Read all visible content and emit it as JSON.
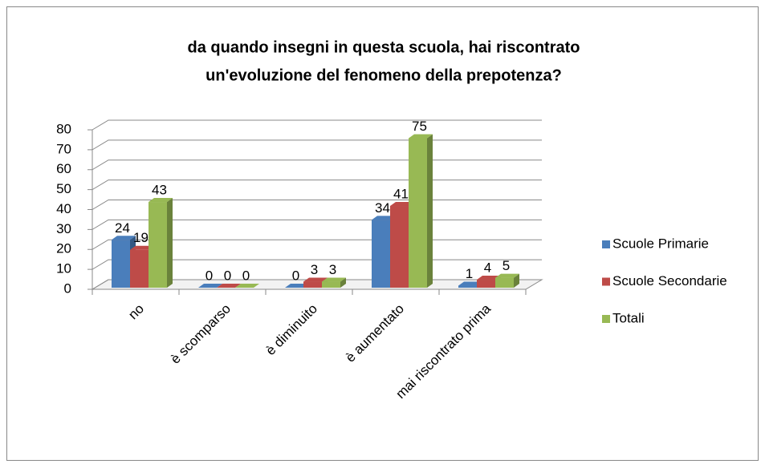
{
  "chart_data": {
    "type": "bar3d",
    "title": [
      "da quando insegni in questa scuola, hai riscontrato",
      "un'evoluzione del fenomeno della prepotenza?"
    ],
    "categories": [
      "no",
      "è scomparso",
      "è diminuito",
      "è aumentato",
      "mai riscontrato prima"
    ],
    "series": [
      {
        "name": "Scuole Primarie",
        "color": "#4a7ebb",
        "values": [
          24,
          0,
          0,
          34,
          1
        ]
      },
      {
        "name": "Scuole Secondarie",
        "color": "#be4b48",
        "values": [
          19,
          0,
          3,
          41,
          4
        ]
      },
      {
        "name": "Totali",
        "color": "#98b954",
        "values": [
          43,
          0,
          3,
          75,
          5
        ]
      }
    ],
    "ylim": [
      0,
      80
    ],
    "yticks": [
      0,
      10,
      20,
      30,
      40,
      50,
      60,
      70,
      80
    ],
    "grid": true,
    "legend": "right"
  }
}
